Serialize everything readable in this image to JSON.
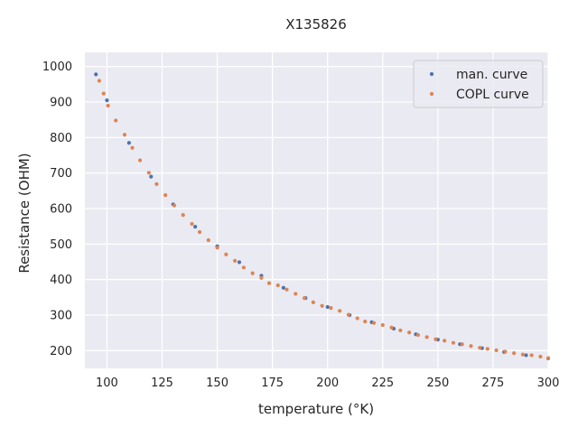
{
  "chart_data": {
    "type": "scatter",
    "title": "X135826",
    "xlabel": "temperature (°K)",
    "ylabel": "Resistance (OHM)",
    "xlim": [
      90,
      300
    ],
    "ylim": [
      150,
      1040
    ],
    "xticks": [
      100,
      125,
      150,
      175,
      200,
      225,
      250,
      275,
      300
    ],
    "yticks": [
      200,
      300,
      400,
      500,
      600,
      700,
      800,
      900,
      1000
    ],
    "grid": true,
    "legend_position": "top-right",
    "style": {
      "background": "#eaeaf2",
      "grid_color": "#ffffff"
    },
    "series": [
      {
        "name": "man. curve",
        "color": "#4c72b0",
        "points": [
          [
            95,
            978
          ],
          [
            100,
            905
          ],
          [
            110,
            785
          ],
          [
            120,
            690
          ],
          [
            130,
            612
          ],
          [
            140,
            549
          ],
          [
            150,
            494
          ],
          [
            160,
            449
          ],
          [
            170,
            411
          ],
          [
            180,
            377
          ],
          [
            190,
            348
          ],
          [
            200,
            323
          ],
          [
            210,
            300
          ],
          [
            220,
            280
          ],
          [
            230,
            262
          ],
          [
            240,
            246
          ],
          [
            250,
            231
          ],
          [
            260,
            218
          ],
          [
            270,
            207
          ],
          [
            280,
            196
          ],
          [
            290,
            187
          ],
          [
            300,
            178
          ]
        ]
      },
      {
        "name": "COPL curve",
        "color": "#dd8452",
        "points": [
          [
            96.5,
            960
          ],
          [
            98.5,
            924
          ],
          [
            100.5,
            890
          ],
          [
            104,
            848
          ],
          [
            108,
            808
          ],
          [
            111.5,
            771
          ],
          [
            115,
            736
          ],
          [
            119,
            701
          ],
          [
            122.5,
            669
          ],
          [
            126.5,
            638
          ],
          [
            130.5,
            609
          ],
          [
            134.5,
            582
          ],
          [
            138.5,
            557
          ],
          [
            142,
            534
          ],
          [
            146,
            511
          ],
          [
            150,
            490
          ],
          [
            154,
            471
          ],
          [
            158,
            453
          ],
          [
            162,
            434
          ],
          [
            166,
            418
          ],
          [
            170,
            405
          ],
          [
            173.5,
            390
          ],
          [
            177.5,
            384
          ],
          [
            181.5,
            372
          ],
          [
            185.5,
            360
          ],
          [
            189.5,
            348
          ],
          [
            193.5,
            336
          ],
          [
            197.5,
            326
          ],
          [
            201.5,
            320
          ],
          [
            205.5,
            312
          ],
          [
            209.5,
            301
          ],
          [
            213.5,
            291
          ],
          [
            217,
            282
          ],
          [
            221,
            278
          ],
          [
            225,
            272
          ],
          [
            229,
            265
          ],
          [
            233,
            257
          ],
          [
            237,
            251
          ],
          [
            241,
            244
          ],
          [
            245,
            238
          ],
          [
            249,
            232
          ],
          [
            253,
            228
          ],
          [
            257,
            222
          ],
          [
            261,
            218
          ],
          [
            265,
            213
          ],
          [
            269,
            208
          ],
          [
            272.5,
            205
          ],
          [
            276.5,
            201
          ],
          [
            280.5,
            197
          ],
          [
            284.5,
            193
          ],
          [
            288.5,
            189
          ],
          [
            292.5,
            187
          ],
          [
            296.5,
            183
          ],
          [
            300,
            179
          ]
        ]
      }
    ]
  }
}
